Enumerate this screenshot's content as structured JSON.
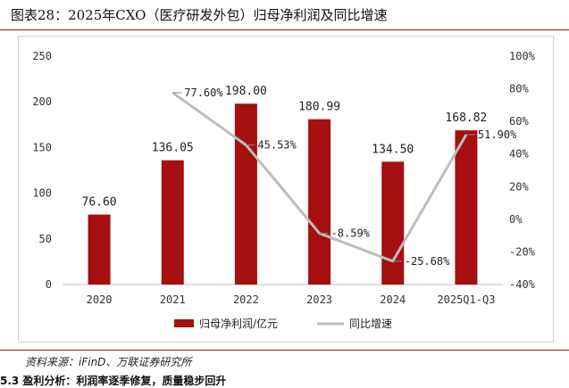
{
  "figure": {
    "title": "图表28：2025年CXO（医疗研发外包）归母净利润及同比增速",
    "source": "资料来源：iFinD、万联证券研究所",
    "footer": "5.3 盈利分析：利润率逐季修复，质量稳步回升"
  },
  "colors": {
    "bar": "#a50f0f",
    "line": "#bdbdbd",
    "rule": "#8c1a1a"
  },
  "chart_data": {
    "type": "bar",
    "categories": [
      "2020",
      "2021",
      "2022",
      "2023",
      "2024",
      "2025Q1-Q3"
    ],
    "series": [
      {
        "name": "归母净利润/亿元",
        "type": "bar",
        "axis": "left",
        "values": [
          76.6,
          136.05,
          198.0,
          180.99,
          134.5,
          168.82
        ],
        "labels": [
          "76.60",
          "136.05",
          "198.00",
          "180.99",
          "134.50",
          "168.82"
        ]
      },
      {
        "name": "同比增速",
        "type": "line",
        "axis": "right",
        "values": [
          null,
          77.6,
          45.53,
          -8.59,
          -25.68,
          51.9
        ],
        "labels": [
          "",
          "77.60%",
          "45.53%",
          "-8.59%",
          "-25.68%",
          "51.90%"
        ]
      }
    ],
    "y_left": {
      "ylim": [
        0,
        250
      ],
      "ticks": [
        "0",
        "50",
        "100",
        "150",
        "200",
        "250"
      ]
    },
    "y_right": {
      "ylim": [
        -40,
        100
      ],
      "ticks": [
        "-40%",
        "-20%",
        "0%",
        "20%",
        "40%",
        "60%",
        "80%",
        "100%"
      ]
    },
    "legend": "bottom",
    "grid": false
  }
}
